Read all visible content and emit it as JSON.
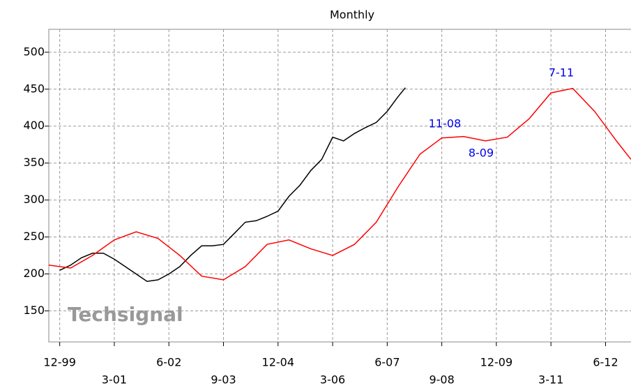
{
  "chart_data": {
    "type": "line",
    "subtitle": "Monthly",
    "watermark": "Techsignal",
    "xlim": [
      "1999-09",
      "2013-01"
    ],
    "xticks": [
      {
        "value": "1999-12",
        "label": "12-99"
      },
      {
        "value": "2001-03",
        "label": "3-01"
      },
      {
        "value": "2002-06",
        "label": "6-02"
      },
      {
        "value": "2003-09",
        "label": "9-03"
      },
      {
        "value": "2004-12",
        "label": "12-04"
      },
      {
        "value": "2006-03",
        "label": "3-06"
      },
      {
        "value": "2007-06",
        "label": "6-07"
      },
      {
        "value": "2008-09",
        "label": "9-08"
      },
      {
        "value": "2009-12",
        "label": "12-09"
      },
      {
        "value": "2011-03",
        "label": "3-11"
      },
      {
        "value": "2012-06",
        "label": "6-12"
      }
    ],
    "ylim": [
      108,
      531
    ],
    "yticks": [
      150,
      200,
      250,
      300,
      350,
      400,
      450,
      500
    ],
    "grid": true,
    "series": [
      {
        "color": "#000000",
        "x": [
          "1999-12",
          "2000-03",
          "2000-06",
          "2000-09",
          "2000-12",
          "2001-03",
          "2001-06",
          "2001-09",
          "2001-12",
          "2002-03",
          "2002-06",
          "2002-09",
          "2002-12",
          "2003-03",
          "2003-06",
          "2003-09",
          "2003-12",
          "2004-03",
          "2004-06",
          "2004-09",
          "2004-12",
          "2005-03",
          "2005-06",
          "2005-09",
          "2005-12",
          "2006-03",
          "2006-06",
          "2006-09",
          "2006-12",
          "2007-03",
          "2007-06",
          "2007-09",
          "2007-11"
        ],
        "values": [
          205,
          212,
          222,
          228,
          228,
          220,
          210,
          200,
          190,
          192,
          200,
          210,
          225,
          238,
          238,
          240,
          255,
          270,
          272,
          278,
          285,
          305,
          320,
          340,
          355,
          385,
          380,
          390,
          398,
          405,
          420,
          440,
          452
        ]
      },
      {
        "color": "#ff0000",
        "x": [
          "1999-09",
          "2000-03",
          "2000-09",
          "2001-03",
          "2001-09",
          "2002-03",
          "2002-09",
          "2003-03",
          "2003-09",
          "2004-03",
          "2004-09",
          "2005-03",
          "2005-09",
          "2006-03",
          "2006-09",
          "2007-03",
          "2007-09",
          "2008-03",
          "2008-09",
          "2009-03",
          "2009-09",
          "2010-03",
          "2010-09",
          "2011-03",
          "2011-09",
          "2012-03",
          "2012-09",
          "2013-01"
        ],
        "values": [
          212,
          208,
          225,
          246,
          257,
          248,
          225,
          197,
          192,
          210,
          240,
          246,
          234,
          225,
          240,
          270,
          318,
          362,
          384,
          386,
          380,
          385,
          410,
          445,
          451,
          420,
          380,
          355
        ]
      }
    ],
    "annotations": [
      "11-08",
      "8-09",
      "7-11"
    ]
  }
}
